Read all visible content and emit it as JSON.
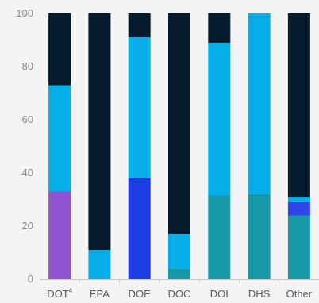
{
  "chart_data": {
    "type": "bar",
    "stacked": true,
    "categories": [
      "DOT",
      "EPA",
      "DOE",
      "DOC",
      "DOI",
      "DHS",
      "Other"
    ],
    "category_superscripts": {
      "DOT": "4"
    },
    "ylim": [
      0,
      100
    ],
    "yticks": [
      "0",
      "20",
      "40",
      "60",
      "80",
      "100"
    ],
    "grid": false,
    "series": [
      {
        "values": [
          33,
          0,
          0,
          0,
          0,
          0,
          0
        ],
        "color": "#9352cf"
      },
      {
        "values": [
          0,
          0,
          38,
          0,
          0,
          0,
          0
        ],
        "color": "#1f3de6"
      },
      {
        "values": [
          0,
          0,
          0,
          4,
          31.5,
          32,
          24
        ],
        "color": "#1797a8"
      },
      {
        "values": [
          0,
          0,
          0,
          0,
          0,
          0,
          5
        ],
        "color": "#2f43e8"
      },
      {
        "values": [
          40,
          11,
          53,
          13,
          57.5,
          68,
          2
        ],
        "color": "#06aee9"
      },
      {
        "values": [
          27,
          89,
          9,
          83,
          11,
          0,
          69
        ],
        "color": "#061a2e"
      }
    ]
  }
}
